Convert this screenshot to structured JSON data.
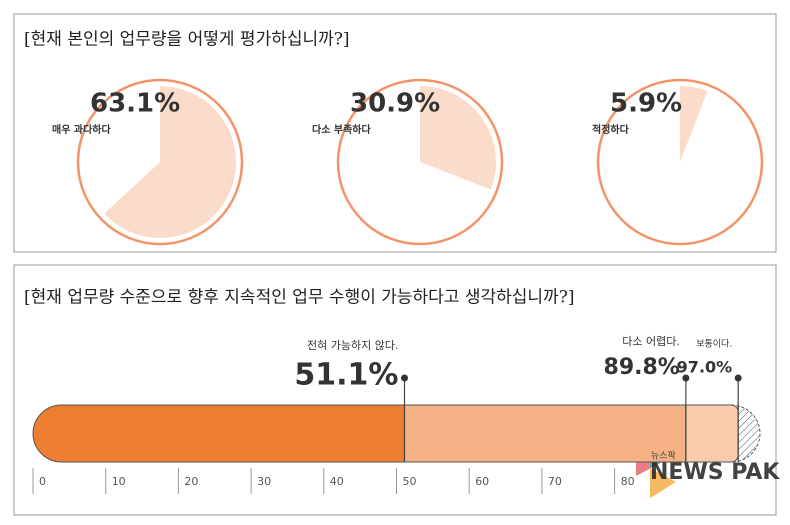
{
  "chart_data": [
    {
      "type": "pie",
      "title": "[현재 본인의 업무량을 어떻게 평가하십니까?]",
      "categories": [
        "매우 과다하다",
        "다소 부족하다",
        "적정하다"
      ],
      "values": [
        63.1,
        30.9,
        5.9
      ],
      "value_labels": [
        "63.1%",
        "30.9%",
        "5.9%"
      ],
      "color": "#fbdcca",
      "ring_color": "#f3936a"
    },
    {
      "type": "bar",
      "title": "[현재 업무량 수준으로 향후 지속적인 업무 수행이 가능하다고 생각하십니까?]",
      "categories": [
        "전혀 가능하지 않다.",
        "다소 어렵다.",
        "보통이다."
      ],
      "values": [
        51.1,
        89.8,
        97.0
      ],
      "value_labels": [
        "51.1%",
        "89.8%",
        "97.0%"
      ],
      "colors": [
        "#ed7d31",
        "#f4b183",
        "#f8cbad"
      ],
      "xlim": [
        0,
        100
      ],
      "xticks": [
        0,
        10,
        20,
        30,
        40,
        50,
        60,
        70,
        80
      ],
      "watermark": "NEWS PAK",
      "watermark_small": "뉴스팍"
    }
  ]
}
